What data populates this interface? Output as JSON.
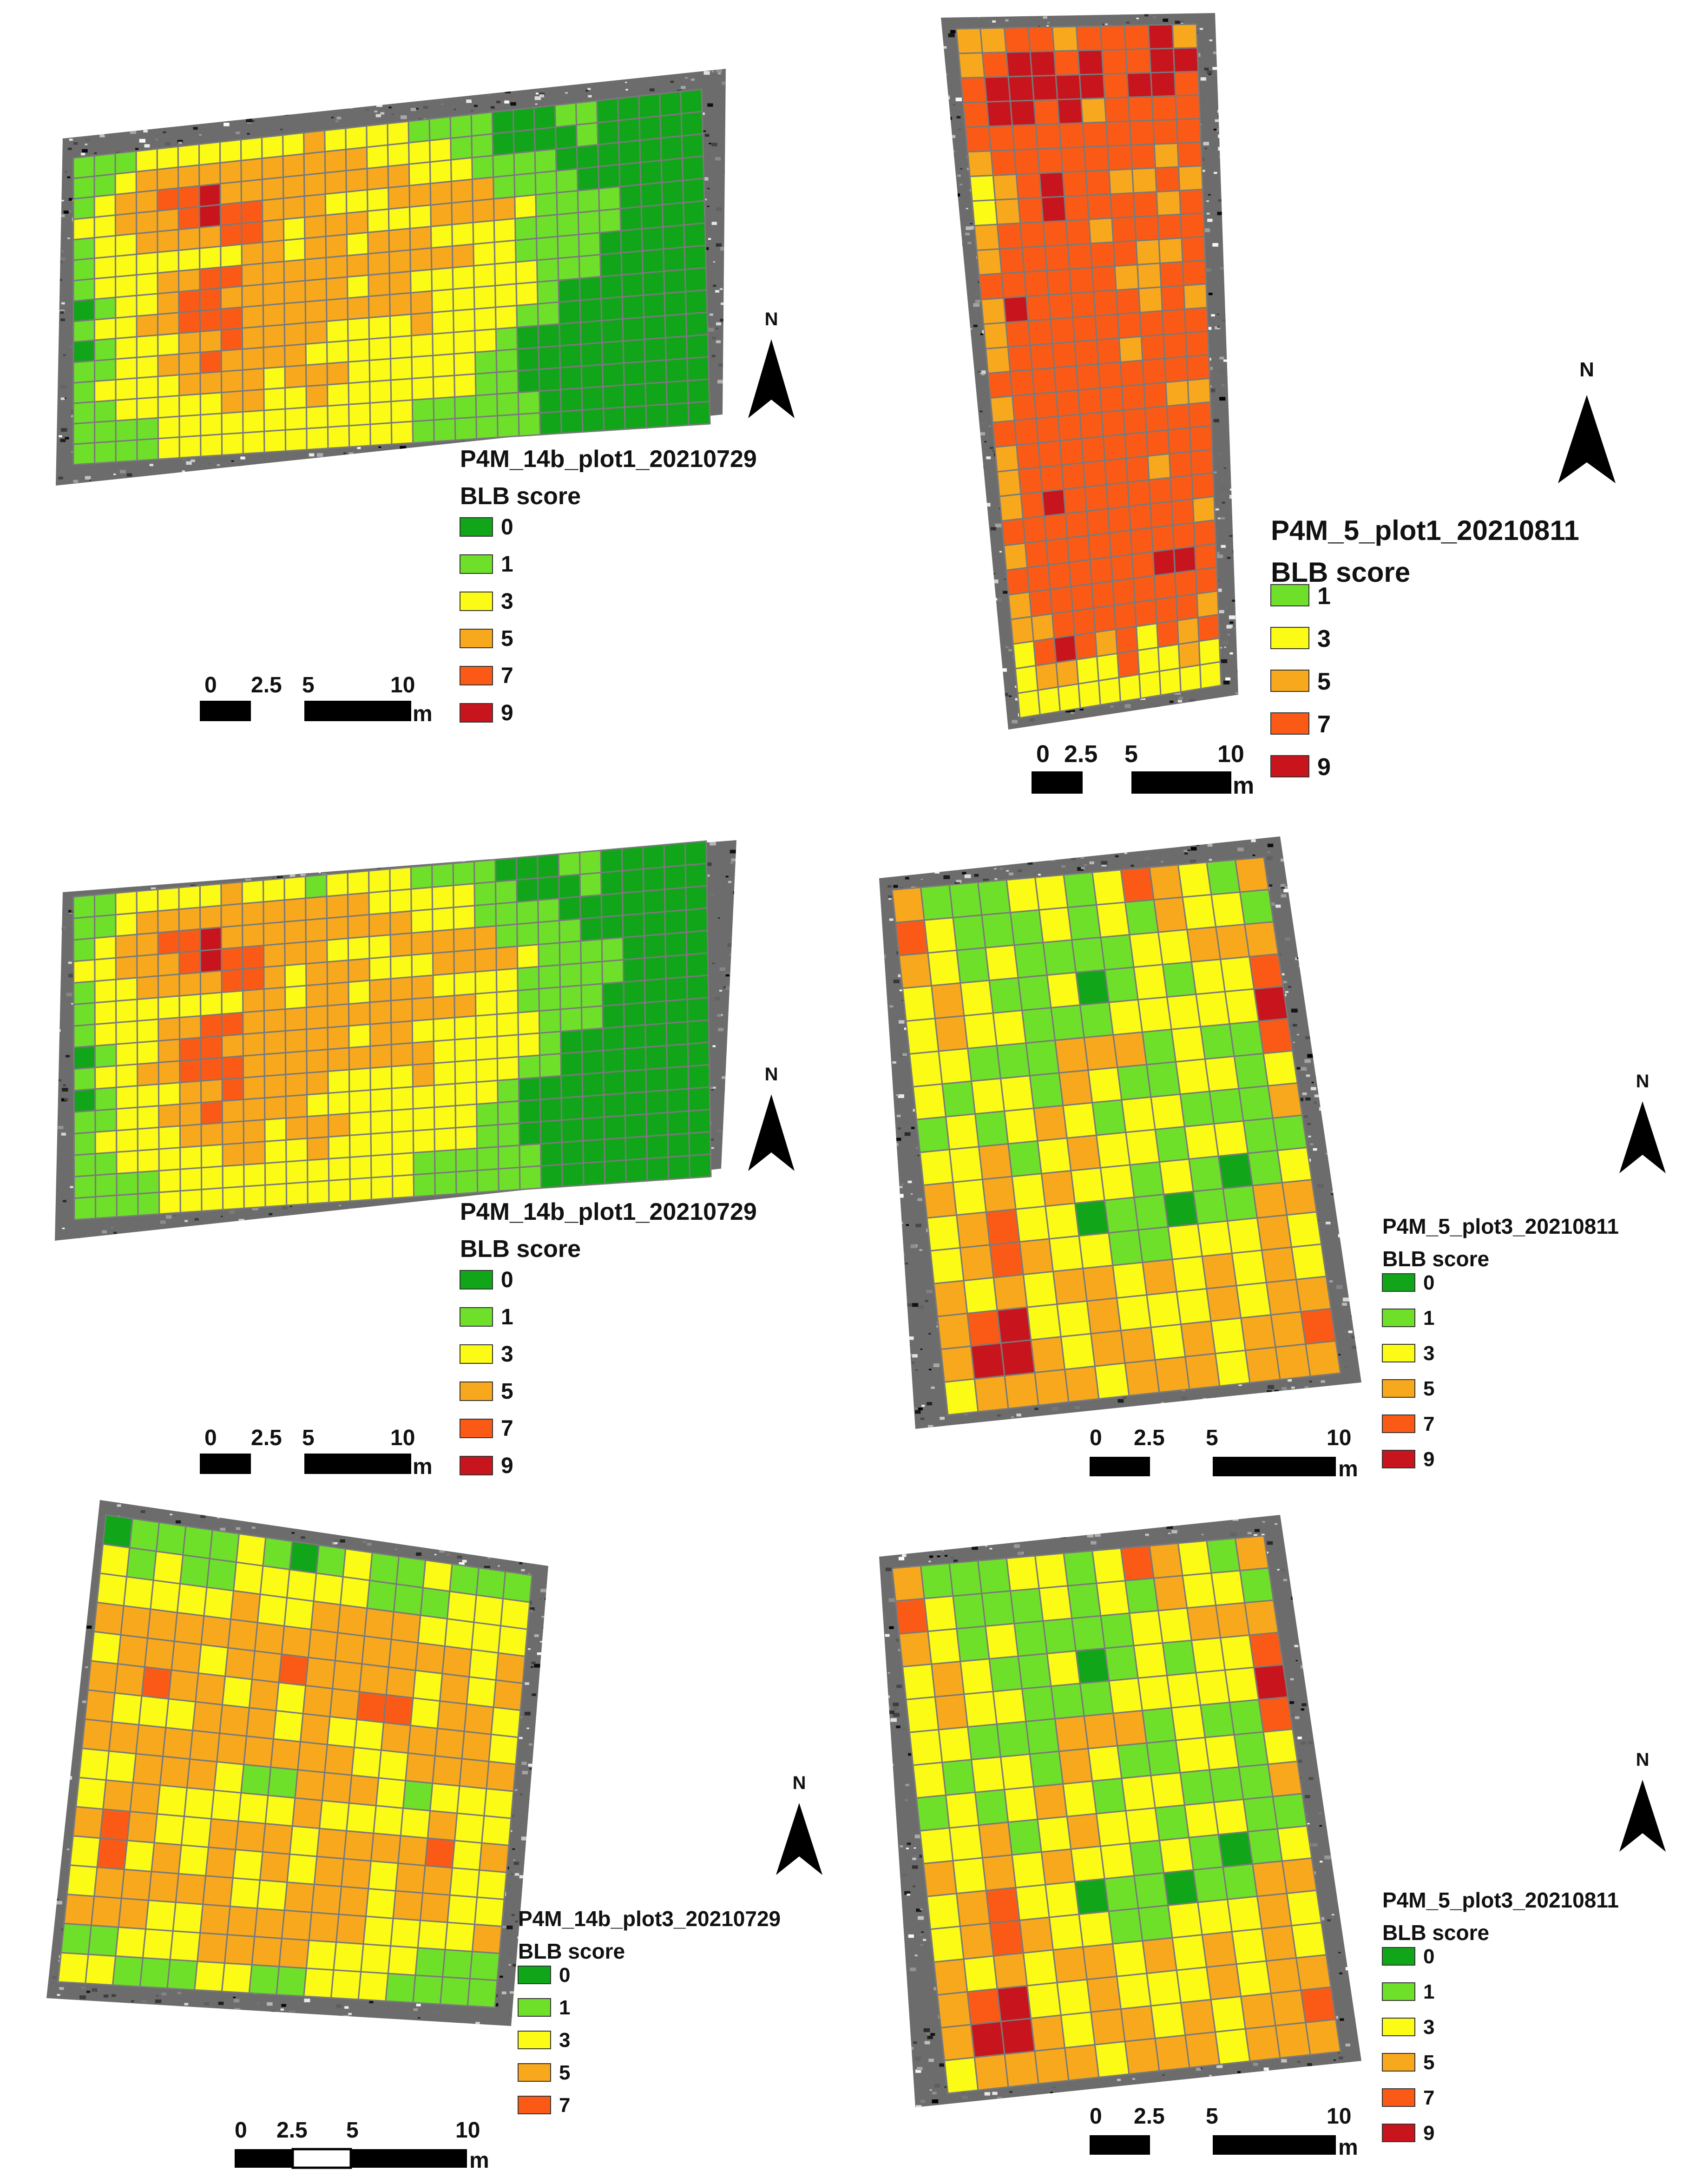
{
  "palette": {
    "0": "#11a51a",
    "1": "#6fe02a",
    "3": "#fbfb15",
    "5": "#f8a81c",
    "7": "#fb5a16",
    "9": "#c8141d",
    "grid_line": "#7a7a7a",
    "background_imagery": "noise-gray"
  },
  "panels": [
    {
      "id": "p1",
      "legend": {
        "title": "P4M_14b_plot1_20210729",
        "subtitle": "BLB score",
        "scores": [
          "0",
          "1",
          "3",
          "5",
          "7",
          "9"
        ]
      },
      "scalebar": {
        "ticks": [
          "0",
          "2.5",
          "5",
          "10"
        ],
        "unit": "m"
      },
      "north": "N",
      "grid": {
        "cols": 30,
        "rows": 15,
        "cells": [
          "111333333335333311110001100000",
          "113555555555553333110000100000",
          "135577955555555533311110000000",
          "335557977555333555551111000000",
          "133555577535553335555311110000",
          "133333335535535553333111110000",
          "133355775555555555533111100000",
          "013357755555535533333311100000",
          "133557775555555553333310000000",
          "013335575555333353333110000000",
          "113355755553333333331000000000",
          "133335555355533333311000000000",
          "113333355335333333311000000000",
          "111133333333333311111100000000",
          "111133333333333311111100000000"
        ]
      }
    },
    {
      "id": "p2",
      "legend": {
        "title": "P4M_5_plot1_20210811",
        "subtitle": "BLB score",
        "scores": [
          "1",
          "3",
          "5",
          "7",
          "9"
        ]
      },
      "scalebar": {
        "ticks": [
          "0",
          "2.5",
          "5",
          "10"
        ],
        "unit": "m"
      },
      "north": "N",
      "grid": {
        "cols": 10,
        "rows": 28,
        "cells": [
          "5577577795",
          "5799797799",
          "7999997997",
          "7997957777",
          "7777777777",
          "5777777757",
          "3579775575",
          "3579777757",
          "5777757777",
          "5777777557",
          "7777775577",
          "5977777575",
          "5777777777",
          "5777775777",
          "7777777777",
          "5777777755",
          "7777777777",
          "5777777777",
          "5777777577",
          "5797777777",
          "7777777775",
          "5777777777",
          "7777777997",
          "5777777777",
          "5577777775",
          "3797573757",
          "3553373353",
          "3333333333"
        ]
      }
    },
    {
      "id": "p3",
      "legend": {
        "title": "P4M_14b_plot1_20210729",
        "subtitle": "BLB score",
        "scores": [
          "0",
          "1",
          "3",
          "5",
          "7",
          "9"
        ]
      },
      "scalebar": {
        "ticks": [
          "0",
          "2.5",
          "5",
          "10"
        ],
        "unit": "m"
      },
      "north": "N",
      "grid": {
        "cols": 30,
        "rows": 15,
        "cells": [
          "113333353331333311110001100000",
          "113555555555553333311000100000",
          "135577955555555533311110000000",
          "335557977555333555551111000000",
          "133555577535553335555311110000",
          "133333335535535553333111110000",
          "133355775555555555533111100000",
          "013357755555535533333311100000",
          "133557775555555553333310000000",
          "013335575555333353333110000000",
          "113355755553333333331000000000",
          "133335555355533333311000000000",
          "113333355335333333311000000000",
          "111133333333333311111100000000",
          "111133333333333311111100000000"
        ]
      }
    },
    {
      "id": "p4",
      "legend": {
        "title": "P4M_5_plot3_20210811",
        "subtitle": "BLB score",
        "scores": [
          "0",
          "1",
          "3",
          "5",
          "7",
          "9"
        ]
      },
      "scalebar": {
        "ticks": [
          "0",
          "2.5",
          "5",
          "10"
        ],
        "unit": "m"
      },
      "north": "N",
      "grid": {
        "cols": 13,
        "rows": 16,
        "cells": [
          "5111331375315",
          "7311131315331",
          "5313111133555",
          "3531130131337",
          "3533111333339",
          "3311155513117",
          "3133153113313",
          "1313531331115",
          "3351353313311",
          "5353533131013",
          "3573301101155",
          "3575331133353",
          "5353553535353",
          "5793353335355",
          "5995355353557",
          "3555535553555"
        ]
      }
    },
    {
      "id": "p5",
      "legend": {
        "title": "P4M_14b_plot3_20210729",
        "subtitle": "BLB score",
        "scores": [
          "0",
          "1",
          "3",
          "5",
          "7"
        ]
      },
      "scalebar": {
        "ticks": [
          "0",
          "2.5",
          "5",
          "10"
        ],
        "unit": "m"
      },
      "north": "N",
      "grid": {
        "cols": 16,
        "rows": 16,
        "cells": [
          "0111131013113111",
          "3131133333111333",
          "3333353355553333",
          "5555555555555535",
          "3555355755553535",
          "5575535355773553",
          "5333555353355553",
          "5555555555335555",
          "3355531155531333",
          "3553333353333533",
          "5753355535555735",
          "3735353535535533",
          "3555553355535533",
          "5553355555533335",
          "1133355553333111",
          "3311133113331111"
        ]
      }
    },
    {
      "id": "p6",
      "legend": {
        "title": "P4M_5_plot3_20210811",
        "subtitle": "BLB score",
        "scores": [
          "0",
          "1",
          "3",
          "5",
          "7",
          "9"
        ]
      },
      "scalebar": {
        "ticks": [
          "0",
          "2.5",
          "5",
          "10"
        ],
        "unit": "m"
      },
      "north": "N",
      "grid": {
        "cols": 13,
        "rows": 16,
        "cells": [
          "5111331375315",
          "7311131315331",
          "5313111133555",
          "3531130131337",
          "3533111333339",
          "3311155513117",
          "3133153113313",
          "1313531331115",
          "3351353313311",
          "5353533131013",
          "3573301101155",
          "3575331133353",
          "5353553535353",
          "5793353335355",
          "5995355353557",
          "3555535553555"
        ]
      }
    }
  ]
}
